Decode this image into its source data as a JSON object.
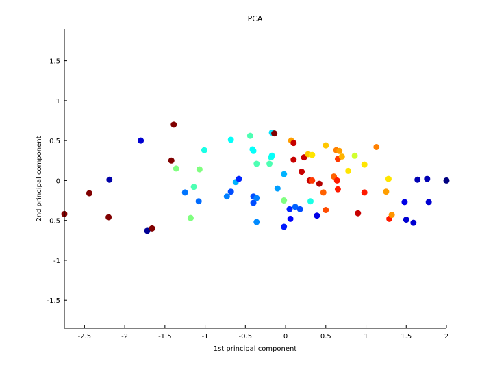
{
  "chart_data": {
    "type": "scatter",
    "title": "PCA",
    "xlabel": "1st principal component",
    "ylabel": "2nd principal component",
    "xlim": [
      -2.75,
      2.0
    ],
    "ylim": [
      -1.85,
      1.9
    ],
    "xticks": [
      -2.5,
      -2,
      -1.5,
      -1,
      -0.5,
      0,
      0.5,
      1,
      1.5,
      2
    ],
    "yticks": [
      -1.5,
      -1,
      -0.5,
      0,
      0.5,
      1,
      1.5
    ],
    "xtick_labels": [
      "-2.5",
      "-2",
      "-1.5",
      "-1",
      "-0.5",
      "0",
      "0.5",
      "1",
      "1.5",
      "2"
    ],
    "ytick_labels": [
      "-1.5",
      "-1",
      "-0.5",
      "0",
      "0.5",
      "1",
      "1.5"
    ],
    "grid": false,
    "colormap": "jet",
    "points": [
      {
        "x": -2.75,
        "y": -0.42,
        "c": 1.0
      },
      {
        "x": -2.44,
        "y": -0.16,
        "c": 1.0
      },
      {
        "x": -2.2,
        "y": -0.46,
        "c": 1.0
      },
      {
        "x": -2.19,
        "y": 0.01,
        "c": 0.04
      },
      {
        "x": -1.8,
        "y": 0.5,
        "c": 0.08
      },
      {
        "x": -1.72,
        "y": -0.63,
        "c": 0.02
      },
      {
        "x": -1.66,
        "y": -0.6,
        "c": 1.0
      },
      {
        "x": -1.39,
        "y": 0.7,
        "c": 1.0
      },
      {
        "x": -1.42,
        "y": 0.25,
        "c": 1.0
      },
      {
        "x": -1.36,
        "y": 0.15,
        "c": 0.5
      },
      {
        "x": -1.25,
        "y": -0.15,
        "c": 0.24
      },
      {
        "x": -1.18,
        "y": -0.47,
        "c": 0.5
      },
      {
        "x": -1.14,
        "y": -0.08,
        "c": 0.45
      },
      {
        "x": -1.08,
        "y": -0.26,
        "c": 0.23
      },
      {
        "x": -1.07,
        "y": 0.14,
        "c": 0.5
      },
      {
        "x": -1.01,
        "y": 0.38,
        "c": 0.4
      },
      {
        "x": -0.73,
        "y": -0.2,
        "c": 0.25
      },
      {
        "x": -0.68,
        "y": -0.14,
        "c": 0.2
      },
      {
        "x": -0.68,
        "y": 0.51,
        "c": 0.38
      },
      {
        "x": -0.62,
        "y": -0.02,
        "c": 0.3
      },
      {
        "x": -0.58,
        "y": 0.02,
        "c": 0.16
      },
      {
        "x": -0.44,
        "y": 0.56,
        "c": 0.45
      },
      {
        "x": -0.41,
        "y": 0.39,
        "c": 0.38
      },
      {
        "x": -0.4,
        "y": 0.37,
        "c": 0.38
      },
      {
        "x": -0.4,
        "y": -0.2,
        "c": 0.2
      },
      {
        "x": -0.4,
        "y": -0.28,
        "c": 0.2
      },
      {
        "x": -0.36,
        "y": -0.22,
        "c": 0.25
      },
      {
        "x": -0.36,
        "y": -0.52,
        "c": 0.26
      },
      {
        "x": -0.36,
        "y": 0.21,
        "c": 0.45
      },
      {
        "x": -0.2,
        "y": 0.21,
        "c": 0.45
      },
      {
        "x": -0.18,
        "y": 0.29,
        "c": 0.4
      },
      {
        "x": -0.17,
        "y": 0.31,
        "c": 0.38
      },
      {
        "x": -0.17,
        "y": 0.6,
        "c": 0.35
      },
      {
        "x": -0.14,
        "y": 0.59,
        "c": 1.0
      },
      {
        "x": -0.1,
        "y": -0.1,
        "c": 0.28
      },
      {
        "x": -0.02,
        "y": -0.25,
        "c": 0.5
      },
      {
        "x": -0.02,
        "y": 0.08,
        "c": 0.3
      },
      {
        "x": -0.02,
        "y": -0.58,
        "c": 0.15
      },
      {
        "x": 0.05,
        "y": -0.36,
        "c": 0.16
      },
      {
        "x": 0.06,
        "y": -0.48,
        "c": 0.12
      },
      {
        "x": 0.07,
        "y": 0.5,
        "c": 0.72
      },
      {
        "x": 0.1,
        "y": 0.47,
        "c": 0.93
      },
      {
        "x": 0.1,
        "y": 0.26,
        "c": 0.93
      },
      {
        "x": 0.12,
        "y": -0.33,
        "c": 0.22
      },
      {
        "x": 0.18,
        "y": -0.36,
        "c": 0.2
      },
      {
        "x": 0.2,
        "y": 0.11,
        "c": 0.93
      },
      {
        "x": 0.23,
        "y": 0.29,
        "c": 0.93
      },
      {
        "x": 0.28,
        "y": 0.33,
        "c": 0.68
      },
      {
        "x": 0.3,
        "y": 0.0,
        "c": 0.93
      },
      {
        "x": 0.31,
        "y": -0.26,
        "c": 0.4
      },
      {
        "x": 0.33,
        "y": 0.32,
        "c": 0.65
      },
      {
        "x": 0.33,
        "y": 0.0,
        "c": 0.82
      },
      {
        "x": 0.39,
        "y": -0.44,
        "c": 0.1
      },
      {
        "x": 0.42,
        "y": -0.04,
        "c": 0.95
      },
      {
        "x": 0.47,
        "y": -0.15,
        "c": 0.78
      },
      {
        "x": 0.5,
        "y": 0.44,
        "c": 0.68
      },
      {
        "x": 0.5,
        "y": -0.37,
        "c": 0.8
      },
      {
        "x": 0.6,
        "y": 0.05,
        "c": 0.78
      },
      {
        "x": 0.63,
        "y": 0.38,
        "c": 0.75
      },
      {
        "x": 0.64,
        "y": 0.0,
        "c": 0.85
      },
      {
        "x": 0.65,
        "y": -0.11,
        "c": 0.85
      },
      {
        "x": 0.65,
        "y": 0.27,
        "c": 0.82
      },
      {
        "x": 0.67,
        "y": 0.37,
        "c": 0.72
      },
      {
        "x": 0.7,
        "y": 0.3,
        "c": 0.7
      },
      {
        "x": 0.78,
        "y": 0.12,
        "c": 0.65
      },
      {
        "x": 0.86,
        "y": 0.31,
        "c": 0.58
      },
      {
        "x": 0.9,
        "y": -0.41,
        "c": 0.93
      },
      {
        "x": 0.98,
        "y": 0.2,
        "c": 0.65
      },
      {
        "x": 0.98,
        "y": -0.15,
        "c": 0.85
      },
      {
        "x": 1.13,
        "y": 0.42,
        "c": 0.75
      },
      {
        "x": 1.25,
        "y": -0.14,
        "c": 0.72
      },
      {
        "x": 1.28,
        "y": 0.02,
        "c": 0.65
      },
      {
        "x": 1.29,
        "y": -0.48,
        "c": 0.85
      },
      {
        "x": 1.32,
        "y": -0.43,
        "c": 0.73
      },
      {
        "x": 1.48,
        "y": -0.27,
        "c": 0.1
      },
      {
        "x": 1.5,
        "y": -0.49,
        "c": 0.08
      },
      {
        "x": 1.59,
        "y": -0.53,
        "c": 0.08
      },
      {
        "x": 1.64,
        "y": 0.01,
        "c": 0.05
      },
      {
        "x": 1.76,
        "y": 0.02,
        "c": 0.05
      },
      {
        "x": 1.78,
        "y": -0.27,
        "c": 0.08
      },
      {
        "x": 2.0,
        "y": 0.0,
        "c": 0.0
      }
    ]
  }
}
